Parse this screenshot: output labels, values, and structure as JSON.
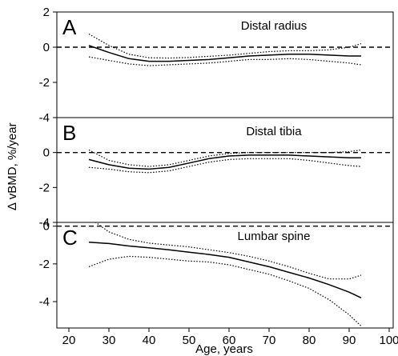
{
  "chart_data": {
    "type": "line",
    "ylabel": "∆ vBMD, %/year",
    "xlabel": "Age, years",
    "x_ticks": [
      "20",
      "30",
      "40",
      "50",
      "60",
      "70",
      "80",
      "90",
      "100"
    ],
    "xlim": [
      17,
      101
    ],
    "grid": false,
    "panels": [
      {
        "letter": "A",
        "title": "Distal radius",
        "ylim": [
          -4,
          2
        ],
        "y_ticks": [
          "2",
          "0",
          "-2",
          "-4"
        ],
        "reference_line": 0,
        "series": [
          {
            "style": "solid",
            "x": [
              25,
              30,
              35,
              40,
              45,
              50,
              55,
              60,
              65,
              70,
              75,
              80,
              85,
              90,
              93
            ],
            "y": [
              0.1,
              -0.3,
              -0.65,
              -0.8,
              -0.8,
              -0.75,
              -0.7,
              -0.6,
              -0.5,
              -0.45,
              -0.4,
              -0.4,
              -0.45,
              -0.5,
              -0.5
            ]
          },
          {
            "style": "dotted",
            "x": [
              25,
              30,
              35,
              40,
              45,
              50,
              55,
              60,
              65,
              70,
              75,
              80,
              85,
              90,
              93
            ],
            "y": [
              0.75,
              0.1,
              -0.4,
              -0.6,
              -0.62,
              -0.58,
              -0.52,
              -0.45,
              -0.35,
              -0.25,
              -0.2,
              -0.2,
              -0.15,
              0.0,
              0.2
            ]
          },
          {
            "style": "dotted",
            "x": [
              25,
              30,
              35,
              40,
              45,
              50,
              55,
              60,
              65,
              70,
              75,
              80,
              85,
              90,
              93
            ],
            "y": [
              -0.55,
              -0.75,
              -0.95,
              -1.05,
              -1.0,
              -0.95,
              -0.9,
              -0.8,
              -0.7,
              -0.7,
              -0.65,
              -0.7,
              -0.8,
              -0.9,
              -1.0
            ]
          }
        ]
      },
      {
        "letter": "B",
        "title": "Distal tibia",
        "ylim": [
          -4,
          2
        ],
        "y_ticks": [
          "0",
          "-2",
          "-4"
        ],
        "reference_line": 0,
        "series": [
          {
            "style": "solid",
            "x": [
              25,
              30,
              35,
              40,
              45,
              50,
              55,
              60,
              65,
              70,
              75,
              80,
              85,
              90,
              93
            ],
            "y": [
              -0.4,
              -0.7,
              -0.9,
              -0.95,
              -0.85,
              -0.6,
              -0.35,
              -0.2,
              -0.15,
              -0.15,
              -0.15,
              -0.2,
              -0.25,
              -0.3,
              -0.3
            ]
          },
          {
            "style": "dotted",
            "x": [
              25,
              30,
              35,
              40,
              45,
              50,
              55,
              60,
              65,
              70,
              75,
              80,
              85,
              90,
              93
            ],
            "y": [
              0.15,
              -0.45,
              -0.7,
              -0.8,
              -0.7,
              -0.45,
              -0.2,
              -0.05,
              0.0,
              0.0,
              0.0,
              0.0,
              0.0,
              0.05,
              0.15
            ]
          },
          {
            "style": "dotted",
            "x": [
              25,
              30,
              35,
              40,
              45,
              50,
              55,
              60,
              65,
              70,
              75,
              80,
              85,
              90,
              93
            ],
            "y": [
              -0.85,
              -0.95,
              -1.1,
              -1.15,
              -1.05,
              -0.8,
              -0.55,
              -0.4,
              -0.35,
              -0.35,
              -0.35,
              -0.45,
              -0.6,
              -0.75,
              -0.8
            ]
          }
        ]
      },
      {
        "letter": "C",
        "title": "Lumbar spine",
        "ylim": [
          -5.4,
          0.2
        ],
        "y_ticks": [
          "0",
          "-2",
          "-4"
        ],
        "reference_line": 0,
        "series": [
          {
            "style": "solid",
            "x": [
              25,
              30,
              35,
              40,
              45,
              50,
              55,
              60,
              65,
              70,
              75,
              80,
              85,
              90,
              93
            ],
            "y": [
              -0.85,
              -0.92,
              -1.05,
              -1.15,
              -1.25,
              -1.38,
              -1.5,
              -1.65,
              -1.9,
              -2.15,
              -2.45,
              -2.75,
              -3.1,
              -3.5,
              -3.8
            ]
          },
          {
            "style": "dotted",
            "x": [
              26,
              28,
              30,
              35,
              40,
              45,
              50,
              55,
              60,
              65,
              70,
              75,
              80,
              85,
              90,
              93
            ],
            "y": [
              0.3,
              0.0,
              -0.3,
              -0.7,
              -0.9,
              -1.0,
              -1.1,
              -1.25,
              -1.4,
              -1.6,
              -1.85,
              -2.15,
              -2.5,
              -2.8,
              -2.8,
              -2.6
            ]
          },
          {
            "style": "dotted",
            "x": [
              25,
              30,
              35,
              40,
              45,
              50,
              55,
              60,
              65,
              70,
              75,
              80,
              85,
              90,
              93
            ],
            "y": [
              -2.15,
              -1.75,
              -1.6,
              -1.65,
              -1.75,
              -1.85,
              -1.9,
              -2.05,
              -2.3,
              -2.55,
              -2.9,
              -3.3,
              -3.9,
              -4.7,
              -5.3
            ]
          }
        ]
      }
    ]
  }
}
